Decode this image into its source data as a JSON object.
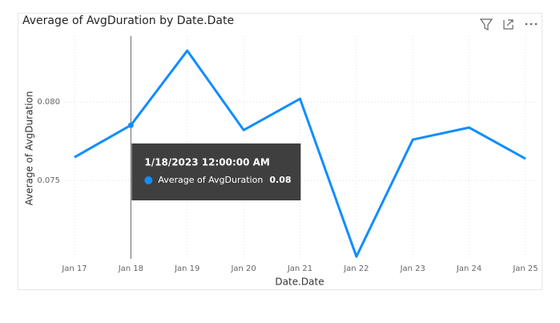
{
  "chart_data": {
    "type": "line",
    "title": "Average of AvgDuration by Date.Date",
    "x_label": "Date.Date",
    "y_label": "Average of AvgDuration",
    "categories": [
      "Jan 17",
      "Jan 18",
      "Jan 19",
      "Jan 20",
      "Jan 21",
      "Jan 22",
      "Jan 23",
      "Jan 24",
      "Jan 25"
    ],
    "series": [
      {
        "name": "Average of AvgDuration",
        "color": "#118dff",
        "values": [
          0.07648,
          0.07852,
          0.08327,
          0.07821,
          0.0802,
          0.07015,
          0.0776,
          0.07837,
          0.07638
        ]
      }
    ],
    "ylim": [
      0.07,
      0.0842
    ],
    "yticks": [
      0.075,
      {
        "value": 0.08,
        "label": "0.080"
      }
    ],
    "grid": true,
    "tooltip": {
      "index": 1,
      "title": "1/18/2023 12:00:00 AM",
      "value_label": "0.08"
    }
  }
}
